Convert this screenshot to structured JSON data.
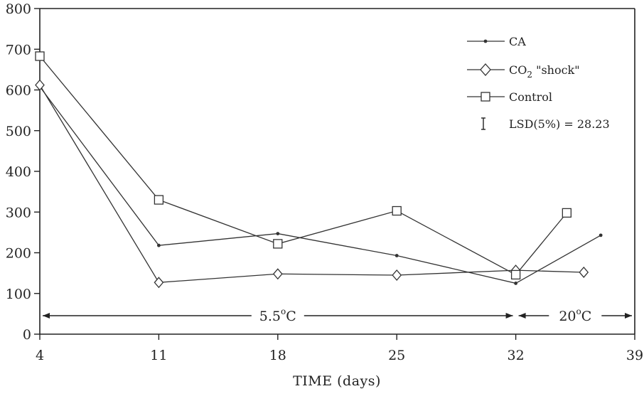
{
  "chart_data": {
    "type": "line",
    "title": "",
    "xlabel": "TIME (days)",
    "ylabel": "",
    "xlim": [
      4,
      39
    ],
    "ylim": [
      0,
      800
    ],
    "x_ticks": [
      4,
      11,
      18,
      25,
      32,
      39
    ],
    "y_ticks": [
      0,
      100,
      200,
      300,
      400,
      500,
      600,
      700,
      800
    ],
    "grid": false,
    "legend_position": "top-right",
    "series": [
      {
        "name": "CA",
        "marker": "dot",
        "x": [
          4,
          11,
          18,
          25,
          32,
          37
        ],
        "y": [
          608,
          218,
          247,
          193,
          125,
          243
        ]
      },
      {
        "name": "CO2 \"shock\"",
        "marker": "diamond",
        "x": [
          4,
          11,
          18,
          25,
          32,
          36
        ],
        "y": [
          612,
          127,
          148,
          145,
          157,
          152
        ]
      },
      {
        "name": "Control",
        "marker": "square",
        "x": [
          4,
          11,
          18,
          25,
          32,
          35
        ],
        "y": [
          683,
          330,
          222,
          303,
          146,
          298
        ]
      }
    ],
    "legend": {
      "ca_label": "CA",
      "co2_label_main": "CO",
      "co2_label_sub": "2",
      "co2_label_rest": " \"shock\"",
      "control_label": "Control",
      "lsd_label": "LSD(5%) = 28.23"
    },
    "temperature_ranges": [
      {
        "label_main": "5.5",
        "label_sup": "o",
        "label_unit": "C",
        "x_start": 4,
        "x_end": 32
      },
      {
        "label_main": "20",
        "label_sup": "o",
        "label_unit": "C",
        "x_start": 32,
        "x_end": 39
      }
    ]
  }
}
